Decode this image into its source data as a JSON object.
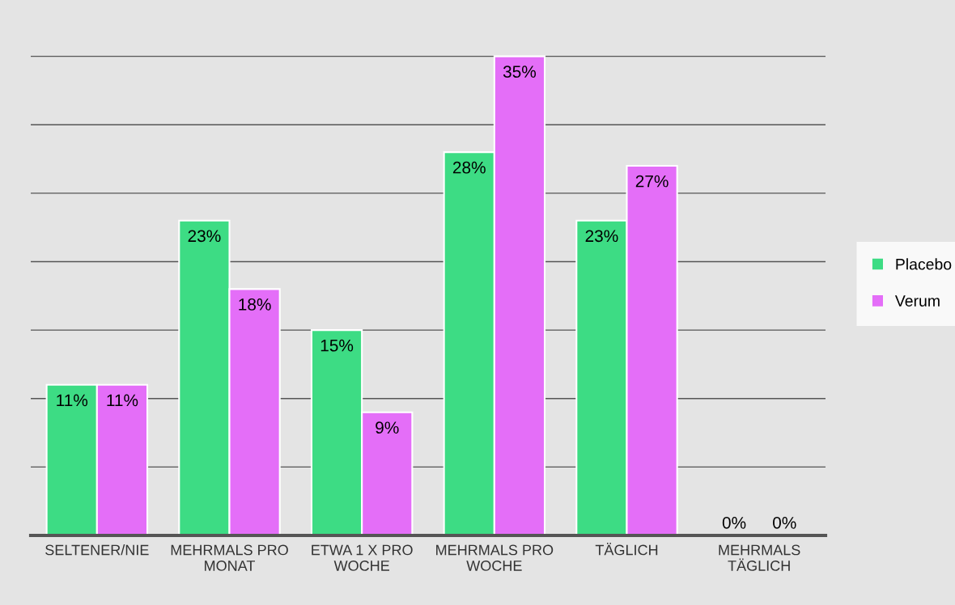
{
  "chart_data": {
    "type": "bar",
    "categories": [
      "SELTENER/NIE",
      "MEHRMALS PRO\nMONAT",
      "ETWA 1 X PRO\nWOCHE",
      "MEHRMALS PRO\nWOCHE",
      "TÄGLICH",
      "MEHRMALS\nTÄGLICH"
    ],
    "series": [
      {
        "name": "Placebo",
        "color": "#3ddc84",
        "values": [
          11,
          23,
          15,
          28,
          23,
          0
        ],
        "value_labels": [
          "11%",
          "23%",
          "15%",
          "28%",
          "23%",
          "0%"
        ]
      },
      {
        "name": "Verum",
        "color": "#e46ef8",
        "values": [
          11,
          18,
          9,
          35,
          27,
          0
        ],
        "value_labels": [
          "11%",
          "18%",
          "9%",
          "35%",
          "27%",
          "0%"
        ]
      }
    ],
    "grid": "y",
    "legend": "right",
    "tick_labels": "x"
  }
}
